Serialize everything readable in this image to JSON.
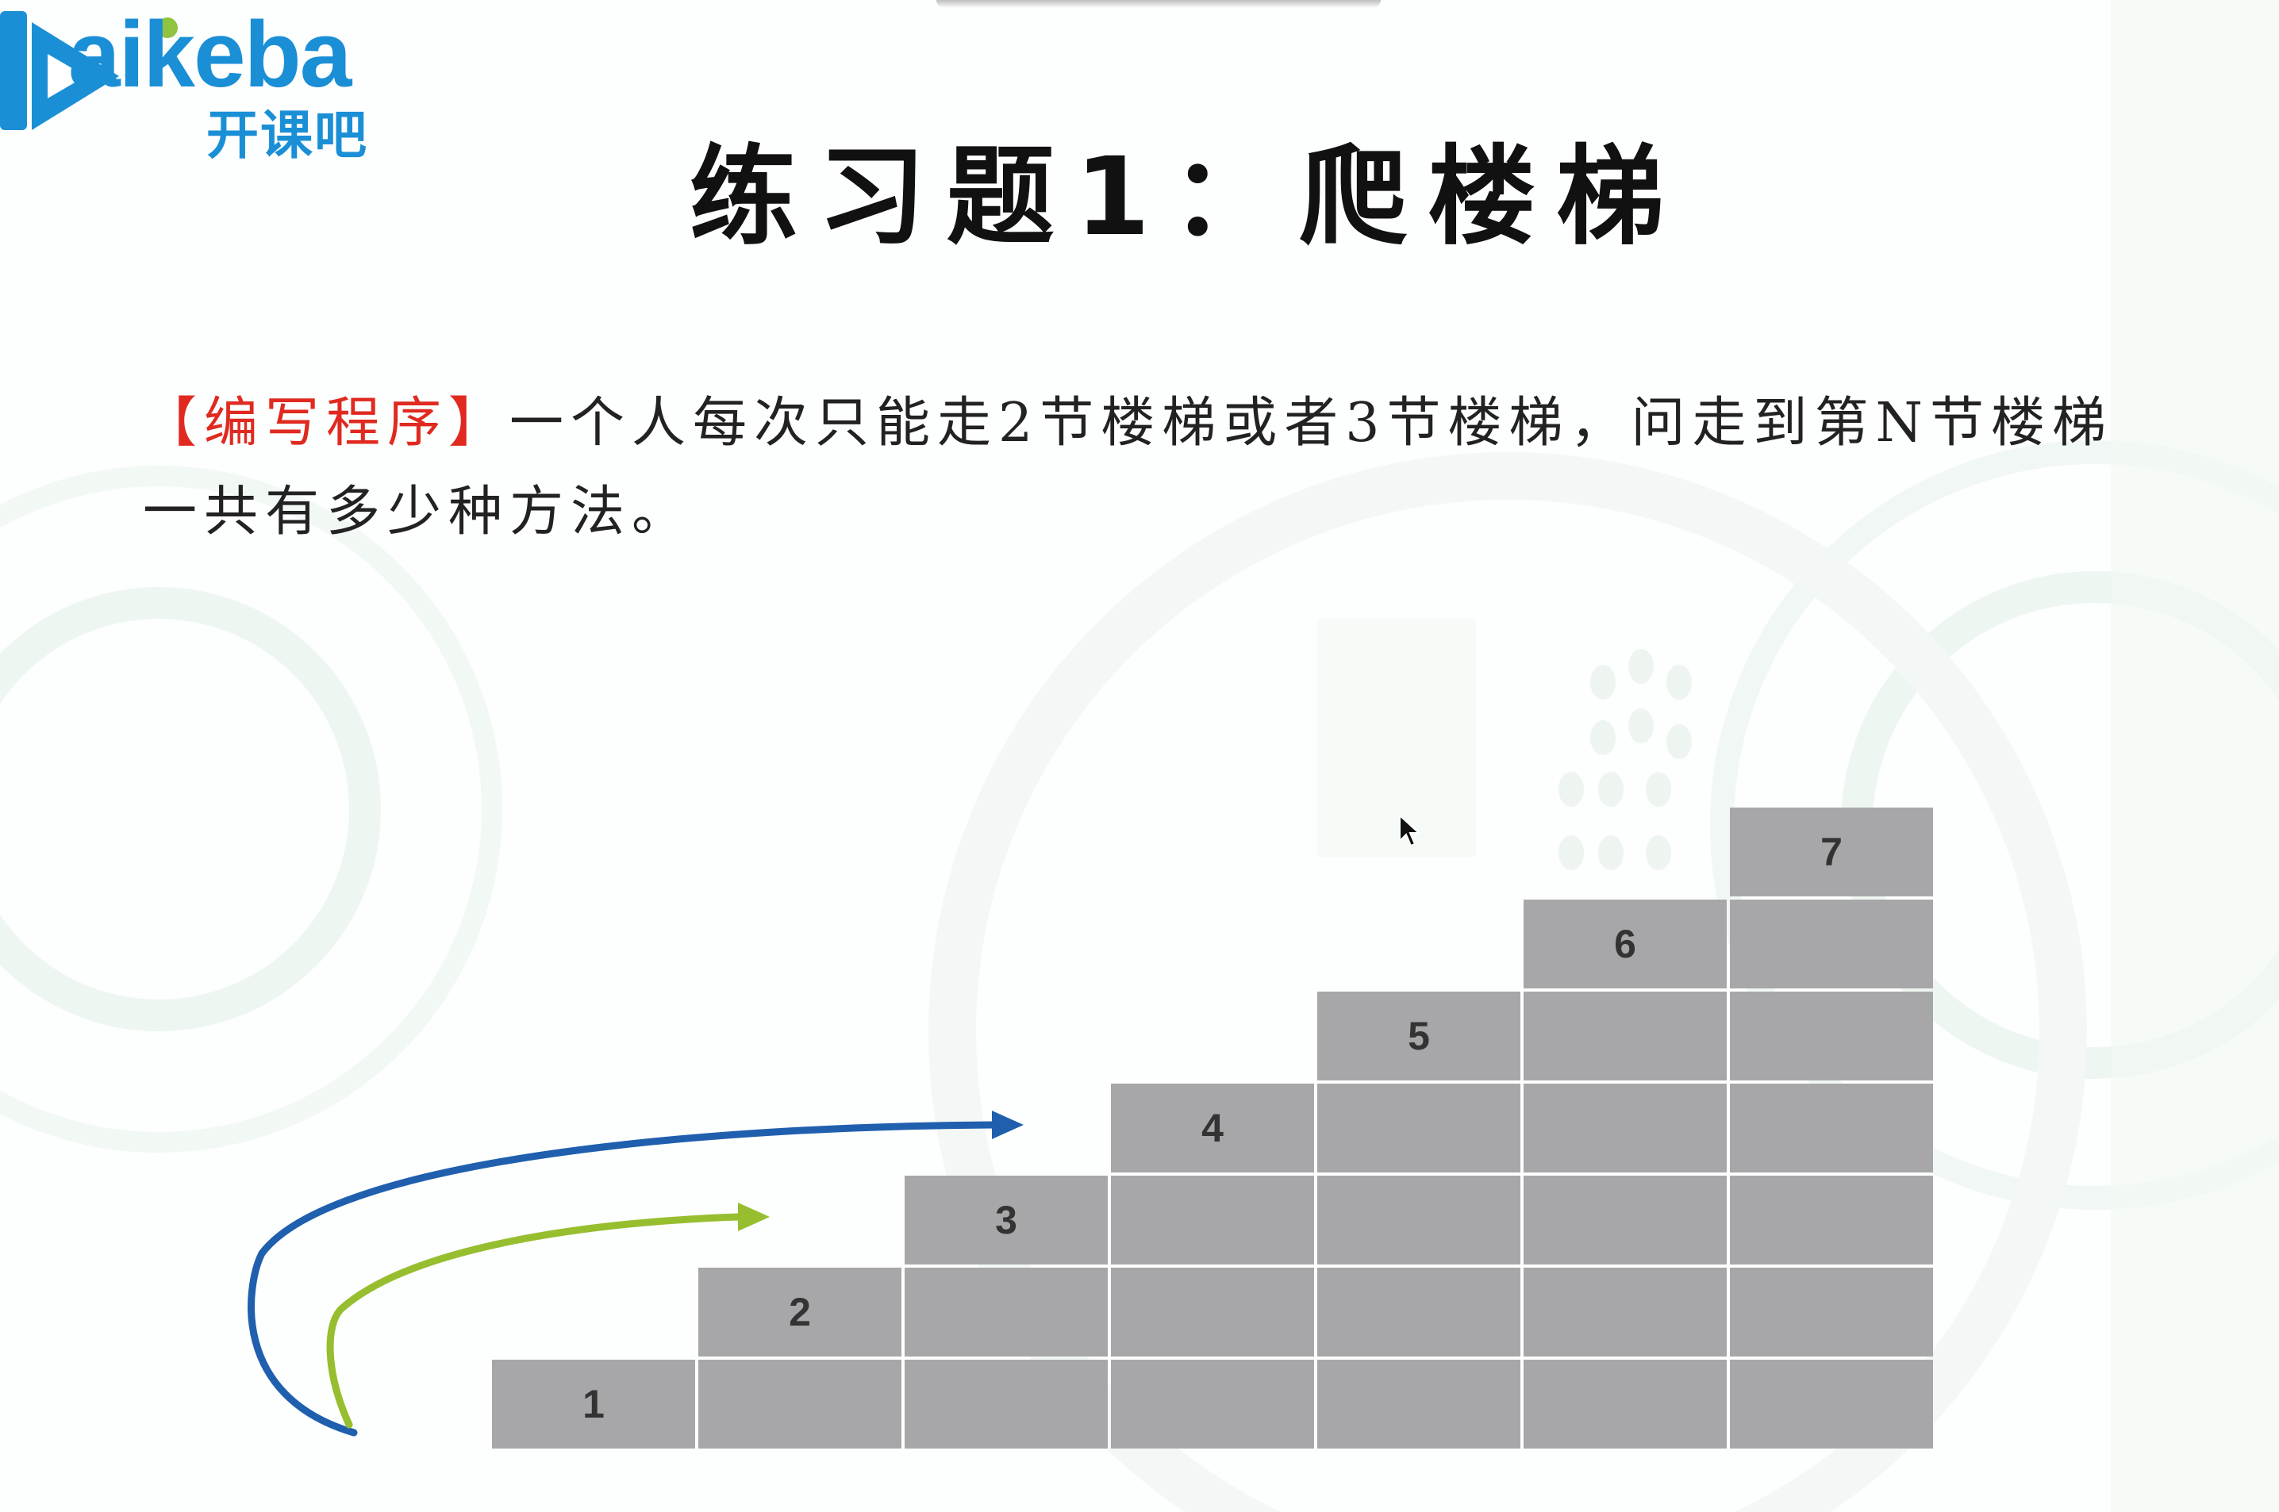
{
  "logo": {
    "text_en": "aikeba",
    "text_cn": "开课吧",
    "brand_color": "#1a8fd6"
  },
  "title": "练习题1：爬楼梯",
  "problem": {
    "tag": "【编写程序】",
    "text": "一个人每次只能走2节楼梯或者3节楼梯，问走到第N节楼梯一共有多少种方法。",
    "tag_color": "#e02a20"
  },
  "stairs": {
    "labels": [
      "1",
      "2",
      "3",
      "4",
      "5",
      "6",
      "7"
    ],
    "block_color": "#a7a7a9"
  },
  "arrows": {
    "blue_color": "#1f5fae",
    "green_color": "#97be2f"
  },
  "icons": {
    "cursor": "cursor-arrow-icon"
  }
}
